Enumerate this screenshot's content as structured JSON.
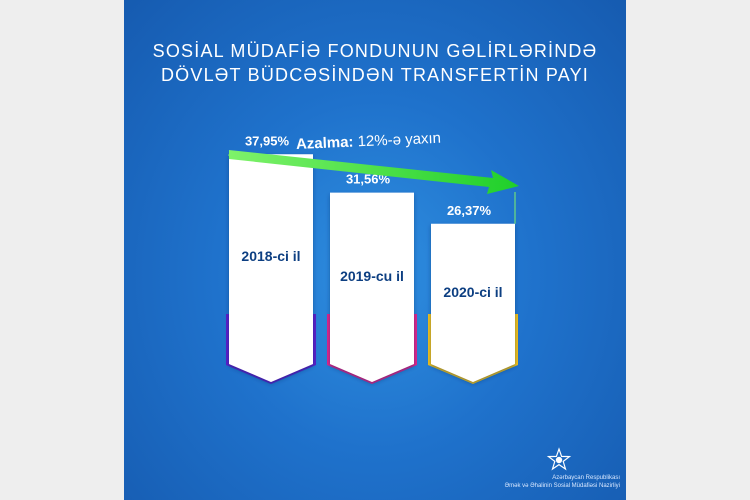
{
  "chart_data": {
    "type": "bar",
    "title": "SOSİAL MÜDAFİƏ FONDUNUN GƏLİRLƏRİNDƏ",
    "subtitle": "DÖVLƏT BÜDCƏSİNDƏN TRANSFERTİN PAYI",
    "categories": [
      "2018-ci il",
      "2019-cu il",
      "2020-ci il"
    ],
    "values": [
      37.95,
      31.56,
      26.37
    ],
    "value_labels": [
      "37,95%",
      "31,56%",
      "26,37%"
    ],
    "ylim": [
      0,
      40
    ],
    "bar_colors": [
      "#5b1fc8",
      "#e0258a",
      "#f2c21a"
    ],
    "trend": {
      "label_bold": "Azalma:",
      "label_rest": "12%-ə yaxın",
      "color": "#36d62e"
    }
  },
  "org": {
    "line1": "Azərbaycan Respublikası",
    "line2": "Əmək və Əhalinin Sosial Müdafiəsi Nazirliyi"
  },
  "icons": {
    "logo": "star-emblem-icon"
  }
}
